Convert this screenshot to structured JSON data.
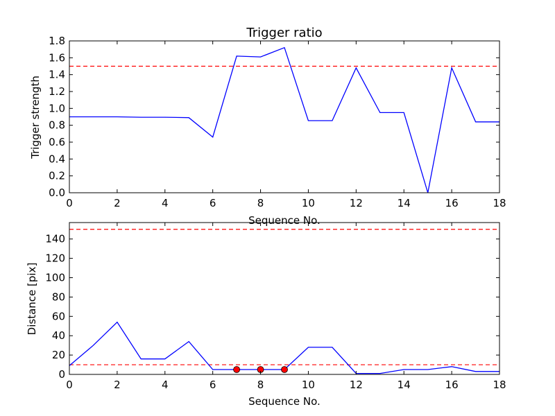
{
  "chart_data": [
    {
      "type": "line",
      "title": "Trigger ratio",
      "xlabel": "Sequence No.",
      "ylabel": "Trigger strength",
      "xlim": [
        0,
        18
      ],
      "ylim": [
        0,
        1.8
      ],
      "xticks": [
        "0",
        "2",
        "4",
        "6",
        "8",
        "10",
        "12",
        "14",
        "16",
        "18"
      ],
      "yticks": [
        "0.0",
        "0.2",
        "0.4",
        "0.6",
        "0.8",
        "1.0",
        "1.2",
        "1.4",
        "1.6",
        "1.8"
      ],
      "grid": false,
      "series": [
        {
          "color": "#0000ff",
          "x": [
            0,
            1,
            2,
            3,
            4,
            5,
            6,
            7,
            8,
            9,
            10,
            11,
            12,
            13,
            14,
            15,
            16,
            17,
            18
          ],
          "y": [
            0.9,
            0.9,
            0.9,
            0.895,
            0.895,
            0.89,
            0.66,
            1.62,
            1.61,
            1.72,
            0.855,
            0.855,
            1.48,
            0.95,
            0.95,
            0.0,
            1.48,
            0.84,
            0.84
          ]
        }
      ],
      "threshold_lines": [
        {
          "y": 1.5,
          "color": "#ff0000",
          "style": "dashed"
        }
      ],
      "markers": []
    },
    {
      "type": "line",
      "title": "",
      "xlabel": "Sequence No.",
      "ylabel": "Distance [pix]",
      "xlim": [
        0,
        18
      ],
      "ylim": [
        0,
        157
      ],
      "xticks": [
        "0",
        "2",
        "4",
        "6",
        "8",
        "10",
        "12",
        "14",
        "16",
        "18"
      ],
      "yticks": [
        "0",
        "20",
        "40",
        "60",
        "80",
        "100",
        "120",
        "140"
      ],
      "grid": false,
      "series": [
        {
          "color": "#0000ff",
          "x": [
            0,
            1,
            2,
            3,
            4,
            5,
            6,
            7,
            8,
            9,
            10,
            11,
            12,
            13,
            14,
            15,
            16,
            17,
            18
          ],
          "y": [
            9,
            30,
            54,
            16,
            16,
            34,
            5,
            5,
            5,
            5,
            28,
            28,
            1,
            1,
            5,
            5,
            8,
            3,
            3
          ]
        }
      ],
      "threshold_lines": [
        {
          "y": 150,
          "color": "#ff0000",
          "style": "dashed"
        },
        {
          "y": 10,
          "color": "#ff0000",
          "style": "dashed"
        }
      ],
      "markers": [
        {
          "x": 7,
          "y": 5,
          "color": "#ff0000"
        },
        {
          "x": 8,
          "y": 5,
          "color": "#ff0000"
        },
        {
          "x": 9,
          "y": 5,
          "color": "#ff0000"
        }
      ]
    }
  ]
}
